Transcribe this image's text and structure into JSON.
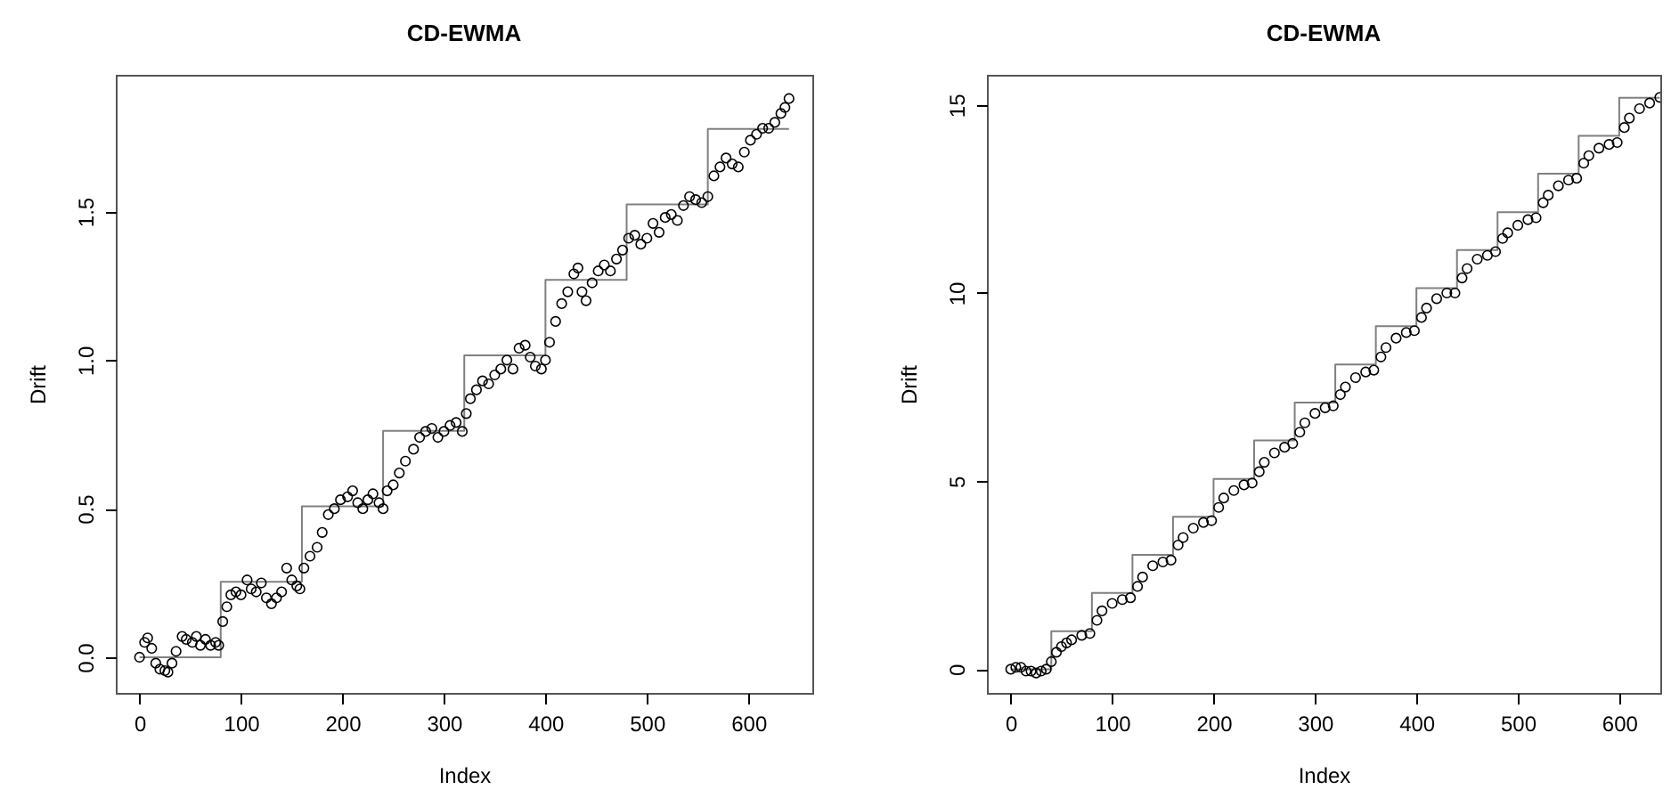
{
  "chart_data": [
    {
      "type": "scatter",
      "title": "CD-EWMA",
      "xlabel": "Index",
      "ylabel": "Drift",
      "xlim": [
        -23.4,
        663
      ],
      "ylim": [
        -0.12,
        1.96
      ],
      "xticks": [
        0,
        100,
        200,
        300,
        400,
        500,
        600
      ],
      "yticks": [
        {
          "value": 0,
          "label": "0.0"
        },
        {
          "value": 0.5,
          "label": "0.5"
        },
        {
          "value": 1,
          "label": "1.0"
        },
        {
          "value": 1.5,
          "label": "1.5"
        }
      ],
      "series": [
        {
          "type": "step",
          "marker": "none",
          "color": "#808080",
          "x": [
            0,
            80,
            160,
            240,
            320,
            400,
            480,
            560,
            640
          ],
          "values": [
            0,
            0.254,
            0.508,
            0.762,
            1.016,
            1.27,
            1.524,
            1.778,
            1.778
          ]
        },
        {
          "type": "scatter",
          "marker": "circle",
          "color": "#000000",
          "x": [
            0,
            5,
            8,
            12,
            16,
            20,
            25,
            28,
            32,
            36,
            42,
            46,
            52,
            56,
            60,
            65,
            70,
            75,
            78,
            82,
            86,
            90,
            95,
            100,
            106,
            110,
            115,
            120,
            125,
            130,
            135,
            140,
            145,
            150,
            155,
            158,
            162,
            168,
            175,
            180,
            186,
            192,
            198,
            205,
            210,
            215,
            220,
            225,
            230,
            236,
            240,
            244,
            250,
            256,
            262,
            270,
            276,
            282,
            288,
            294,
            300,
            306,
            312,
            318,
            322,
            326,
            332,
            338,
            344,
            350,
            356,
            362,
            368,
            374,
            380,
            385,
            390,
            396,
            400,
            404,
            410,
            416,
            422,
            428,
            432,
            436,
            440,
            446,
            452,
            458,
            464,
            470,
            476,
            482,
            488,
            494,
            500,
            506,
            512,
            518,
            524,
            530,
            536,
            542,
            548,
            554,
            560,
            566,
            572,
            578,
            584,
            590,
            596,
            602,
            608,
            614,
            620,
            626,
            632,
            636,
            640
          ],
          "values": [
            0.0,
            0.05,
            0.065,
            0.03,
            -0.02,
            -0.04,
            -0.045,
            -0.05,
            -0.02,
            0.02,
            0.07,
            0.06,
            0.05,
            0.07,
            0.04,
            0.06,
            0.04,
            0.05,
            0.04,
            0.12,
            0.17,
            0.21,
            0.22,
            0.21,
            0.26,
            0.23,
            0.22,
            0.25,
            0.2,
            0.18,
            0.2,
            0.22,
            0.3,
            0.26,
            0.24,
            0.23,
            0.3,
            0.34,
            0.37,
            0.42,
            0.48,
            0.5,
            0.53,
            0.54,
            0.56,
            0.52,
            0.5,
            0.53,
            0.55,
            0.52,
            0.5,
            0.56,
            0.58,
            0.62,
            0.66,
            0.7,
            0.74,
            0.76,
            0.77,
            0.74,
            0.76,
            0.78,
            0.79,
            0.76,
            0.82,
            0.87,
            0.9,
            0.93,
            0.92,
            0.95,
            0.97,
            1.0,
            0.97,
            1.04,
            1.05,
            1.01,
            0.98,
            0.97,
            1.0,
            1.06,
            1.13,
            1.19,
            1.23,
            1.29,
            1.31,
            1.23,
            1.2,
            1.26,
            1.3,
            1.32,
            1.3,
            1.34,
            1.37,
            1.41,
            1.42,
            1.39,
            1.41,
            1.46,
            1.43,
            1.48,
            1.49,
            1.47,
            1.52,
            1.55,
            1.54,
            1.53,
            1.55,
            1.62,
            1.65,
            1.68,
            1.66,
            1.65,
            1.7,
            1.74,
            1.76,
            1.78,
            1.78,
            1.8,
            1.83,
            1.85,
            1.88
          ]
        }
      ]
    },
    {
      "type": "scatter",
      "title": "CD-EWMA",
      "xlabel": "Index",
      "ylabel": "Drift",
      "xlim": [
        -23.5,
        640.5
      ],
      "ylim": [
        -0.63,
        15.8
      ],
      "xticks": [
        0,
        100,
        200,
        300,
        400,
        500,
        600
      ],
      "yticks": [
        0,
        5,
        10,
        15
      ],
      "series": [
        {
          "type": "step",
          "marker": "none",
          "color": "#808080",
          "x": [
            0,
            40,
            80,
            120,
            160,
            200,
            240,
            280,
            320,
            360,
            400,
            440,
            480,
            520,
            560,
            600,
            640
          ],
          "values": [
            0,
            1.01,
            2.03,
            3.04,
            4.05,
            5.06,
            6.08,
            7.09,
            8.1,
            9.12,
            10.13,
            11.14,
            12.15,
            13.17,
            14.18,
            15.19,
            15.19
          ]
        },
        {
          "type": "scatter",
          "marker": "circle",
          "color": "#000000",
          "x": [
            0,
            5,
            10,
            15,
            20,
            25,
            30,
            35,
            40,
            45,
            50,
            55,
            60,
            70,
            78,
            85,
            90,
            100,
            110,
            118,
            125,
            130,
            140,
            150,
            158,
            165,
            170,
            180,
            190,
            198,
            205,
            210,
            220,
            230,
            238,
            245,
            250,
            260,
            270,
            278,
            285,
            290,
            300,
            310,
            318,
            325,
            330,
            340,
            350,
            358,
            365,
            370,
            380,
            390,
            398,
            405,
            410,
            420,
            430,
            438,
            445,
            450,
            460,
            470,
            478,
            485,
            490,
            500,
            510,
            518,
            525,
            530,
            540,
            550,
            558,
            565,
            570,
            580,
            590,
            598,
            605,
            610,
            620,
            630,
            640
          ],
          "values": [
            0,
            0.05,
            0.05,
            -0.05,
            -0.05,
            -0.1,
            -0.05,
            0.0,
            0.2,
            0.45,
            0.6,
            0.7,
            0.78,
            0.9,
            0.95,
            1.3,
            1.55,
            1.75,
            1.85,
            1.9,
            2.2,
            2.45,
            2.75,
            2.85,
            2.9,
            3.3,
            3.5,
            3.75,
            3.9,
            3.95,
            4.3,
            4.55,
            4.75,
            4.9,
            4.95,
            5.25,
            5.5,
            5.75,
            5.9,
            6.0,
            6.3,
            6.55,
            6.8,
            6.95,
            7.0,
            7.3,
            7.5,
            7.75,
            7.9,
            7.95,
            8.3,
            8.55,
            8.8,
            8.95,
            9.0,
            9.35,
            9.6,
            9.85,
            10.0,
            10.0,
            10.4,
            10.65,
            10.9,
            11.0,
            11.1,
            11.45,
            11.6,
            11.8,
            11.95,
            12.0,
            12.4,
            12.6,
            12.85,
            13.0,
            13.05,
            13.45,
            13.65,
            13.85,
            13.95,
            14.0,
            14.4,
            14.65,
            14.9,
            15.05,
            15.2
          ]
        }
      ]
    }
  ]
}
